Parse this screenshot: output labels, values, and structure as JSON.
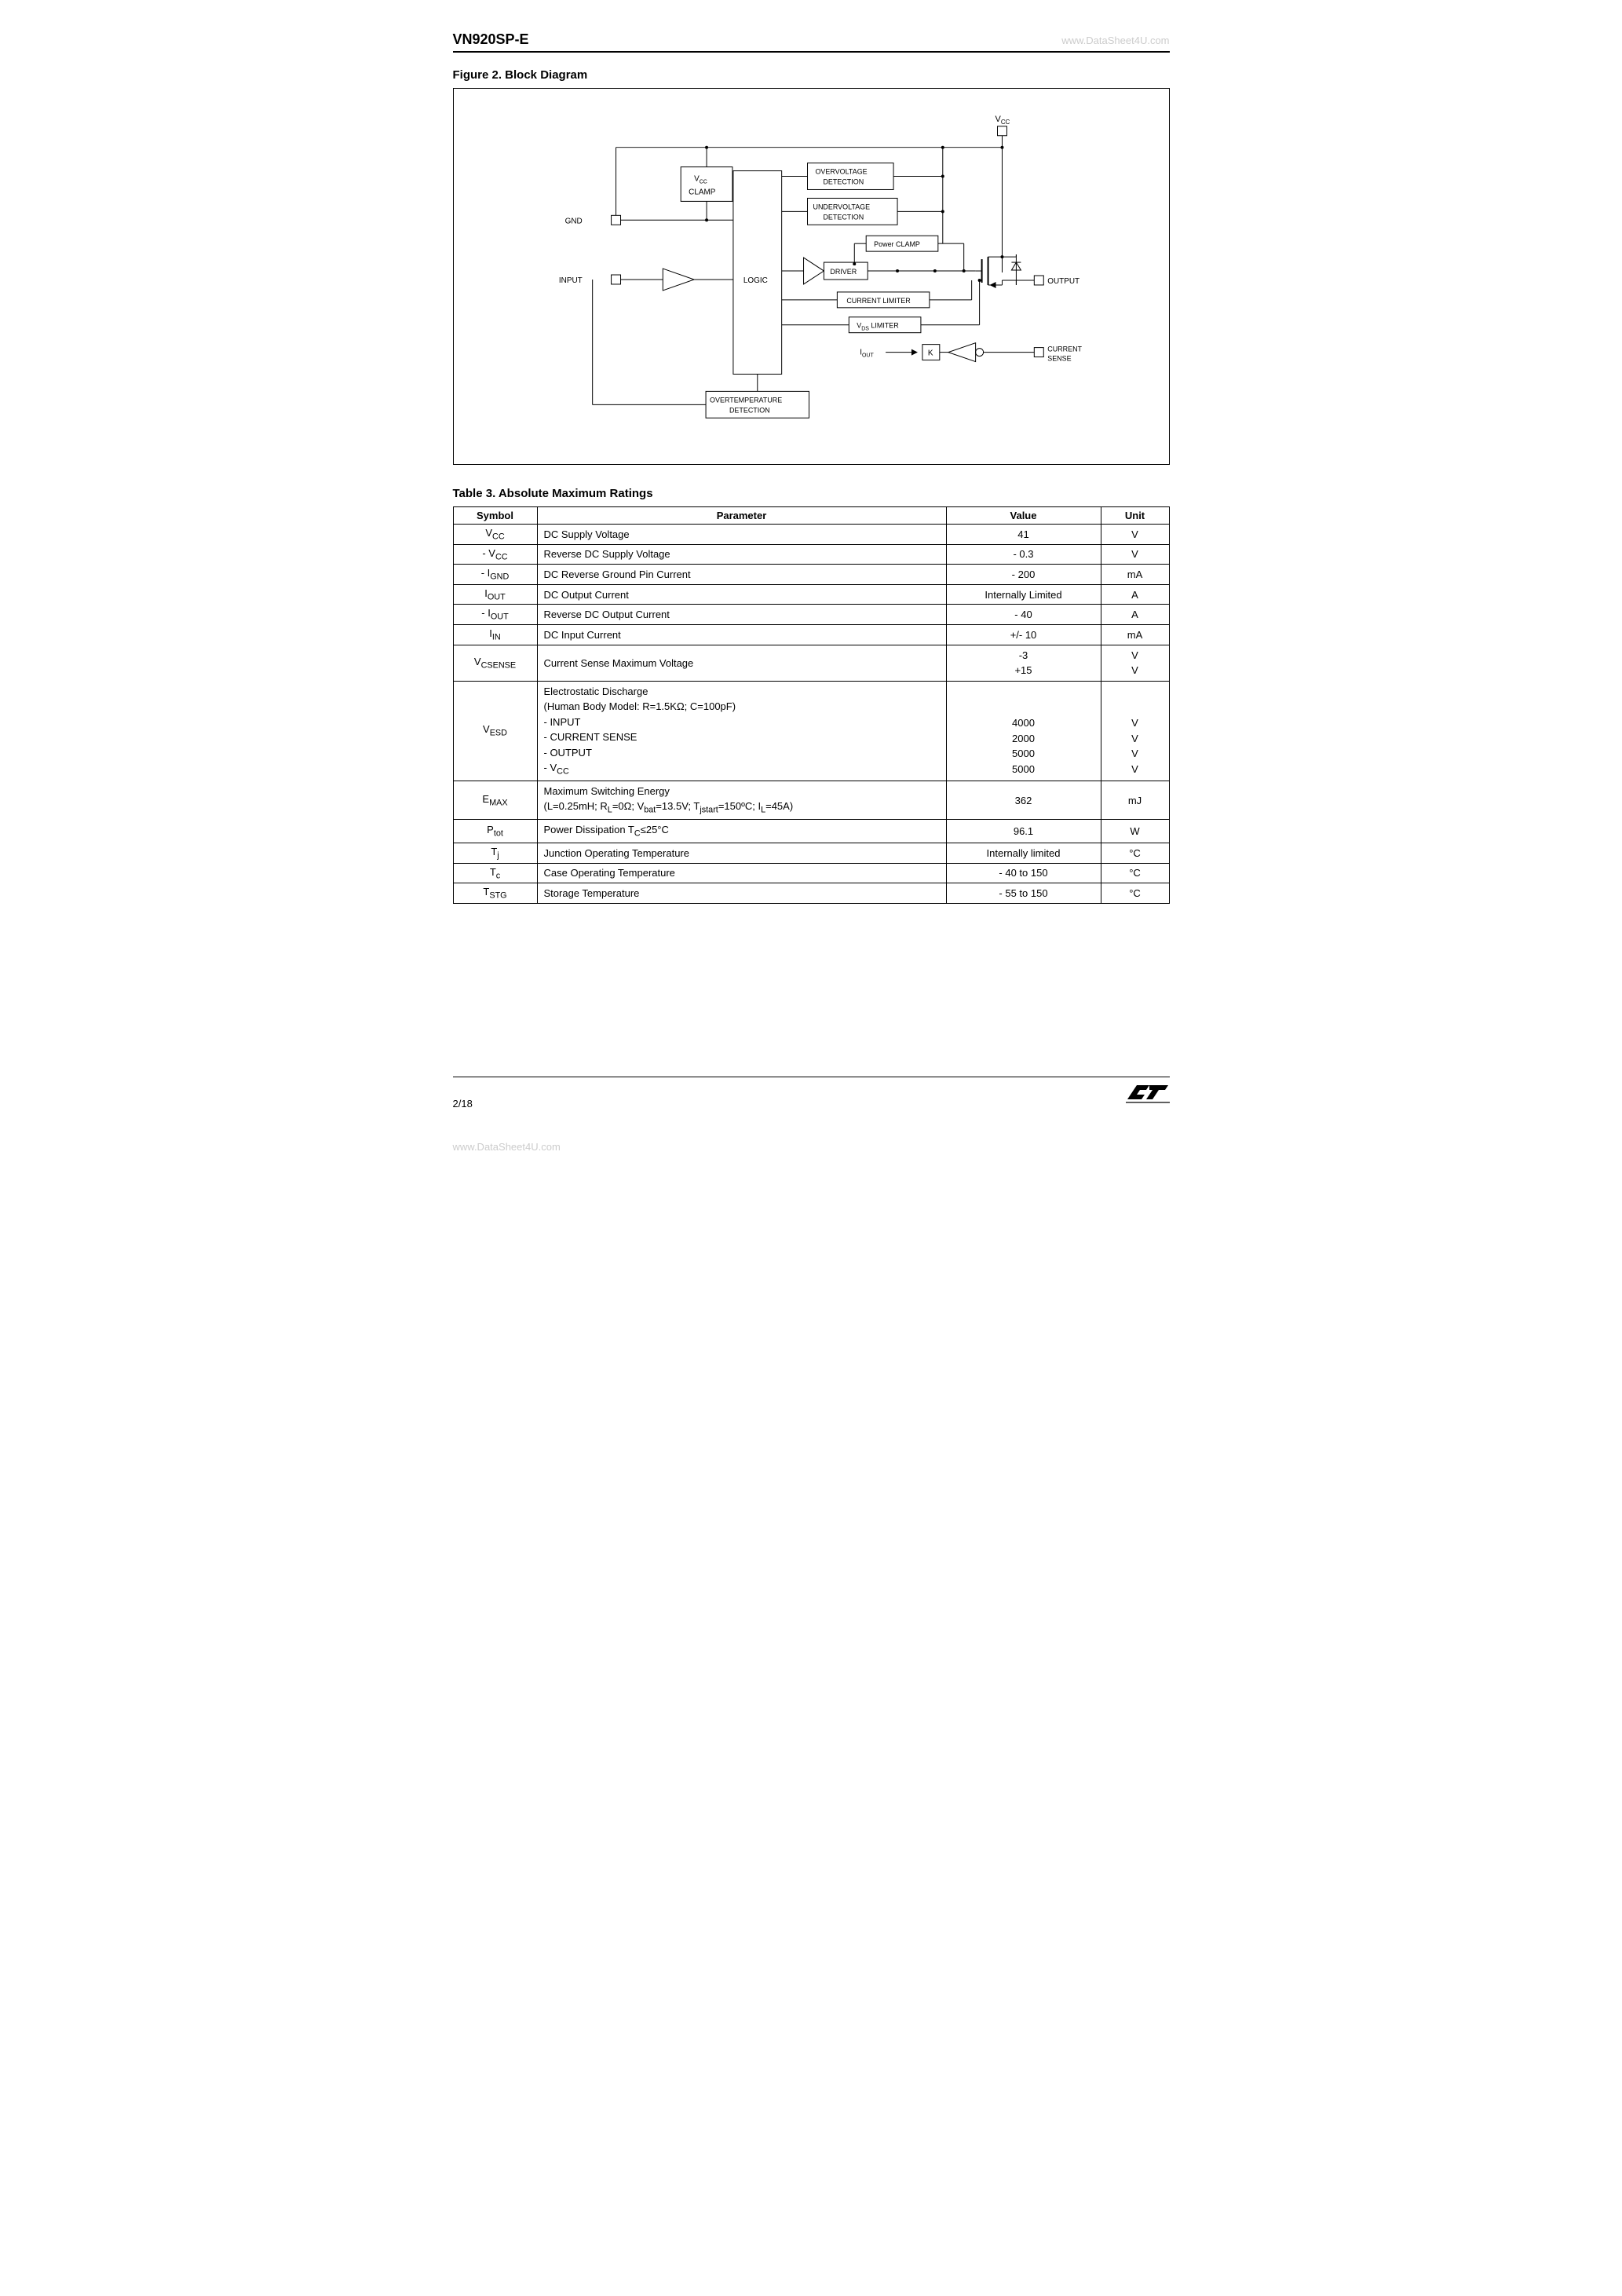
{
  "watermark": "www.DataSheet4U.com",
  "header": {
    "title": "VN920SP-E"
  },
  "figure": {
    "caption": "Figure 2. Block Diagram",
    "labels": {
      "vcc": "V",
      "vcc_sub": "CC",
      "gnd": "GND",
      "input": "INPUT",
      "output": "OUTPUT",
      "current_sense_1": "CURRENT",
      "current_sense_2": "SENSE",
      "iout": "I",
      "iout_sub": "OUT",
      "k": "K",
      "vcc_clamp_1": "V",
      "vcc_clamp_1_sub": "CC",
      "vcc_clamp_2": "CLAMP",
      "overvoltage_1": "OVERVOLTAGE",
      "overvoltage_2": "DETECTION",
      "undervoltage_1": "UNDERVOLTAGE",
      "undervoltage_2": "DETECTION",
      "power_clamp": "Power CLAMP",
      "driver": "DRIVER",
      "logic": "LOGIC",
      "current_limiter": "CURRENT LIMITER",
      "vds_limiter_1": "V",
      "vds_limiter_1_sub": "DS",
      "vds_limiter_2": " LIMITER",
      "overtemp_1": "OVERTEMPERATURE",
      "overtemp_2": "DETECTION"
    }
  },
  "table": {
    "caption": "Table 3. Absolute Maximum Ratings",
    "headers": [
      "Symbol",
      "Parameter",
      "Value",
      "Unit"
    ],
    "rows": [
      {
        "symbol_html": "V<sub>CC</sub>",
        "param": "DC Supply Voltage",
        "value": "41",
        "unit": "V"
      },
      {
        "symbol_html": "- V<sub>CC</sub>",
        "param": "Reverse DC Supply Voltage",
        "value": "- 0.3",
        "unit": "V"
      },
      {
        "symbol_html": "- I<sub>GND</sub>",
        "param": "DC Reverse Ground Pin Current",
        "value": "- 200",
        "unit": "mA"
      },
      {
        "symbol_html": "I<sub>OUT</sub>",
        "param": "DC Output Current",
        "value": "Internally Limited",
        "unit": "A"
      },
      {
        "symbol_html": "- I<sub>OUT</sub>",
        "param": "Reverse DC Output Current",
        "value": "- 40",
        "unit": "A"
      },
      {
        "symbol_html": "I<sub>IN</sub>",
        "param": "DC Input Current",
        "value": "+/- 10",
        "unit": "mA"
      },
      {
        "symbol_html": "V<sub>CSENSE</sub>",
        "param": "Current Sense Maximum Voltage",
        "value_html": "-3<br>+15",
        "unit_html": "V<br>V",
        "rowspan": 1
      },
      {
        "symbol_html": "V<sub>ESD</sub>",
        "param_html": "Electrostatic Discharge<br>(Human Body Model: R=1.5KΩ; C=100pF)<br>- INPUT<br>- CURRENT SENSE<br>- OUTPUT<br>- V<sub>CC</sub>",
        "value_html": "<br><br>4000<br>2000<br>5000<br>5000",
        "unit_html": "<br><br>V<br>V<br>V<br>V"
      },
      {
        "symbol_html": "E<sub>MAX</sub>",
        "param_html": "Maximum Switching Energy<br>(L=0.25mH; R<sub>L</sub>=0Ω; V<sub>bat</sub>=13.5V; T<sub>jstart</sub>=150ºC; I<sub>L</sub>=45A)",
        "value": "362",
        "unit": "mJ"
      },
      {
        "symbol_html": "P<sub>tot</sub>",
        "param_html": "Power Dissipation T<sub>C</sub>≤25°C",
        "value": "96.1",
        "unit": "W"
      },
      {
        "symbol_html": "T<sub>j</sub>",
        "param": "Junction Operating Temperature",
        "value": "Internally limited",
        "unit": "°C"
      },
      {
        "symbol_html": "T<sub>c</sub>",
        "param": "Case Operating Temperature",
        "value": "- 40 to 150",
        "unit": "°C"
      },
      {
        "symbol_html": "T<sub>STG</sub>",
        "param": "Storage Temperature",
        "value": "- 55 to 150",
        "unit": "°C"
      }
    ]
  },
  "footer": {
    "page": "2/18"
  },
  "diagram_style": {
    "stroke": "#000",
    "stroke_width": 1,
    "font_size_small": 9,
    "font_size_tiny": 7,
    "background": "#ffffff"
  }
}
